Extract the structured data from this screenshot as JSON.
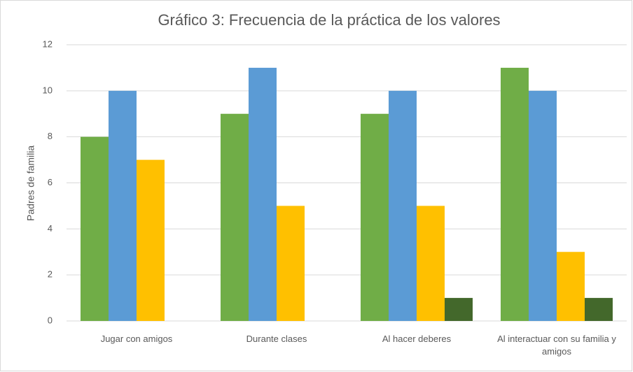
{
  "chart_data": {
    "type": "bar",
    "title": "Gráfico 3: Frecuencia de la práctica de los valores",
    "y_label": "Padres de familia",
    "categories": [
      "Jugar con amigos",
      "Durante clases",
      "Al hacer deberes",
      "Al interactuar con su familia y amigos"
    ],
    "series": [
      {
        "color": "#70ad47",
        "values": [
          8,
          9,
          9,
          11
        ]
      },
      {
        "color": "#5b9bd5",
        "values": [
          10,
          11,
          10,
          10
        ]
      },
      {
        "color": "#ffc000",
        "values": [
          7,
          5,
          5,
          3
        ]
      },
      {
        "color": "#43682b",
        "values": [
          0,
          0,
          1,
          1
        ]
      }
    ],
    "ylim": [
      0,
      12
    ],
    "yticks": [
      0,
      2,
      4,
      6,
      8,
      10,
      12
    ],
    "grid": true
  }
}
